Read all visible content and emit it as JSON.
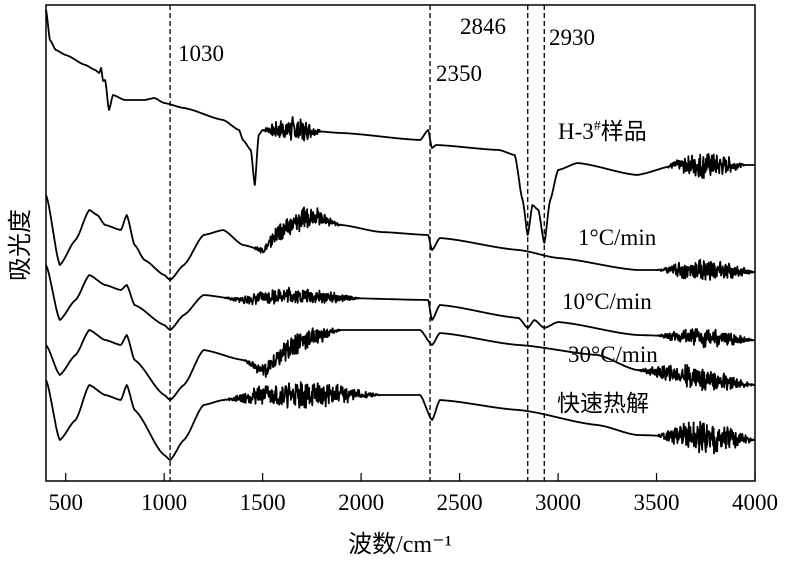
{
  "chart_data": {
    "type": "line",
    "title": "",
    "xlabel": "波数/cm⁻¹",
    "ylabel": "吸光度",
    "xlim": [
      400,
      4000
    ],
    "ylim": [
      0,
      476
    ],
    "y_units": "arbitrary (no tick labels)",
    "grid": false,
    "legend": "inline labels right of curves",
    "x_ticks": [
      "500",
      "1000",
      "1500",
      "2000",
      "2500",
      "3000",
      "3500",
      "4000"
    ],
    "x_tick_values": [
      500,
      1000,
      1500,
      2000,
      2500,
      3000,
      3500,
      4000
    ],
    "reference_lines": [
      {
        "x": 1030,
        "label": "1030"
      },
      {
        "x": 2350,
        "label": "2350"
      },
      {
        "x": 2846,
        "label": "2846"
      },
      {
        "x": 2930,
        "label": "2930"
      }
    ],
    "series": [
      {
        "name": "H-3#样品",
        "label_main": "H-3",
        "label_sup": "#",
        "label_tail": "样品",
        "noise": [
          [
            1500,
            1800,
            14
          ],
          [
            3550,
            3950,
            14
          ]
        ],
        "points": [
          [
            400,
            471
          ],
          [
            420,
            441
          ],
          [
            450,
            431
          ],
          [
            500,
            426
          ],
          [
            600,
            416
          ],
          [
            650,
            411
          ],
          [
            670,
            408
          ],
          [
            680,
            413
          ],
          [
            690,
            400
          ],
          [
            700,
            401
          ],
          [
            720,
            371
          ],
          [
            740,
            386
          ],
          [
            800,
            381
          ],
          [
            900,
            381
          ],
          [
            950,
            383
          ],
          [
            1000,
            378
          ],
          [
            1100,
            373
          ],
          [
            1300,
            361
          ],
          [
            1380,
            351
          ],
          [
            1400,
            341
          ],
          [
            1440,
            331
          ],
          [
            1460,
            296
          ],
          [
            1480,
            346
          ],
          [
            1500,
            351
          ],
          [
            1700,
            351
          ],
          [
            1900,
            348
          ],
          [
            2300,
            341
          ],
          [
            2340,
            351
          ],
          [
            2360,
            333
          ],
          [
            2380,
            336
          ],
          [
            2700,
            331
          ],
          [
            2780,
            326
          ],
          [
            2820,
            281
          ],
          [
            2846,
            246
          ],
          [
            2870,
            276
          ],
          [
            2900,
            271
          ],
          [
            2930,
            238
          ],
          [
            2960,
            281
          ],
          [
            3000,
            311
          ],
          [
            3100,
            318
          ],
          [
            3400,
            306
          ],
          [
            3600,
            316
          ],
          [
            4000,
            316
          ]
        ]
      },
      {
        "name": "1°C/min",
        "noise": [
          [
            1450,
            1900,
            12
          ],
          [
            3500,
            4000,
            12
          ]
        ],
        "points": [
          [
            400,
            286
          ],
          [
            470,
            216
          ],
          [
            550,
            241
          ],
          [
            620,
            271
          ],
          [
            660,
            266
          ],
          [
            700,
            256
          ],
          [
            780,
            251
          ],
          [
            810,
            266
          ],
          [
            850,
            236
          ],
          [
            900,
            221
          ],
          [
            1000,
            206
          ],
          [
            1030,
            201
          ],
          [
            1100,
            216
          ],
          [
            1200,
            246
          ],
          [
            1300,
            251
          ],
          [
            1400,
            236
          ],
          [
            1500,
            231
          ],
          [
            1600,
            251
          ],
          [
            1750,
            266
          ],
          [
            1900,
            256
          ],
          [
            2100,
            249
          ],
          [
            2340,
            246
          ],
          [
            2360,
            231
          ],
          [
            2400,
            243
          ],
          [
            2800,
            231
          ],
          [
            3000,
            223
          ],
          [
            3400,
            211
          ],
          [
            3700,
            211
          ],
          [
            4000,
            209
          ]
        ]
      },
      {
        "name": "10°C/min",
        "noise": [
          [
            1300,
            2000,
            9
          ],
          [
            3500,
            4000,
            10
          ]
        ],
        "points": [
          [
            400,
            216
          ],
          [
            470,
            161
          ],
          [
            550,
            181
          ],
          [
            620,
            206
          ],
          [
            700,
            196
          ],
          [
            780,
            191
          ],
          [
            810,
            196
          ],
          [
            850,
            176
          ],
          [
            1000,
            156
          ],
          [
            1030,
            151
          ],
          [
            1100,
            166
          ],
          [
            1200,
            186
          ],
          [
            1400,
            181
          ],
          [
            1600,
            186
          ],
          [
            1900,
            183
          ],
          [
            2340,
            181
          ],
          [
            2360,
            161
          ],
          [
            2400,
            176
          ],
          [
            2800,
            163
          ],
          [
            2846,
            153
          ],
          [
            2880,
            161
          ],
          [
            2930,
            153
          ],
          [
            3000,
            159
          ],
          [
            3400,
            146
          ],
          [
            4000,
            141
          ]
        ]
      },
      {
        "name": "30°C/min",
        "noise": [
          [
            1400,
            1900,
            13
          ],
          [
            3400,
            4000,
            12
          ]
        ],
        "points": [
          [
            400,
            136
          ],
          [
            470,
            106
          ],
          [
            550,
            126
          ],
          [
            620,
            151
          ],
          [
            700,
            141
          ],
          [
            780,
            136
          ],
          [
            810,
            146
          ],
          [
            850,
            121
          ],
          [
            1000,
            86
          ],
          [
            1030,
            81
          ],
          [
            1100,
            96
          ],
          [
            1200,
            131
          ],
          [
            1400,
            121
          ],
          [
            1500,
            111
          ],
          [
            1700,
            141
          ],
          [
            1900,
            151
          ],
          [
            2300,
            151
          ],
          [
            2360,
            136
          ],
          [
            2400,
            148
          ],
          [
            2800,
            136
          ],
          [
            3200,
            126
          ],
          [
            3400,
            111
          ],
          [
            4000,
            96
          ]
        ]
      },
      {
        "name": "快速热解",
        "noise": [
          [
            1300,
            2100,
            14
          ],
          [
            3500,
            4000,
            18
          ]
        ],
        "points": [
          [
            400,
            101
          ],
          [
            470,
            41
          ],
          [
            550,
            61
          ],
          [
            620,
            96
          ],
          [
            700,
            86
          ],
          [
            780,
            81
          ],
          [
            810,
            96
          ],
          [
            850,
            71
          ],
          [
            1000,
            26
          ],
          [
            1030,
            21
          ],
          [
            1100,
            41
          ],
          [
            1200,
            76
          ],
          [
            1300,
            81
          ],
          [
            1500,
            86
          ],
          [
            1900,
            86
          ],
          [
            2300,
            86
          ],
          [
            2360,
            61
          ],
          [
            2400,
            81
          ],
          [
            2800,
            71
          ],
          [
            3200,
            56
          ],
          [
            3400,
            46
          ],
          [
            4000,
            41
          ]
        ]
      }
    ],
    "line_color": "#000000"
  }
}
